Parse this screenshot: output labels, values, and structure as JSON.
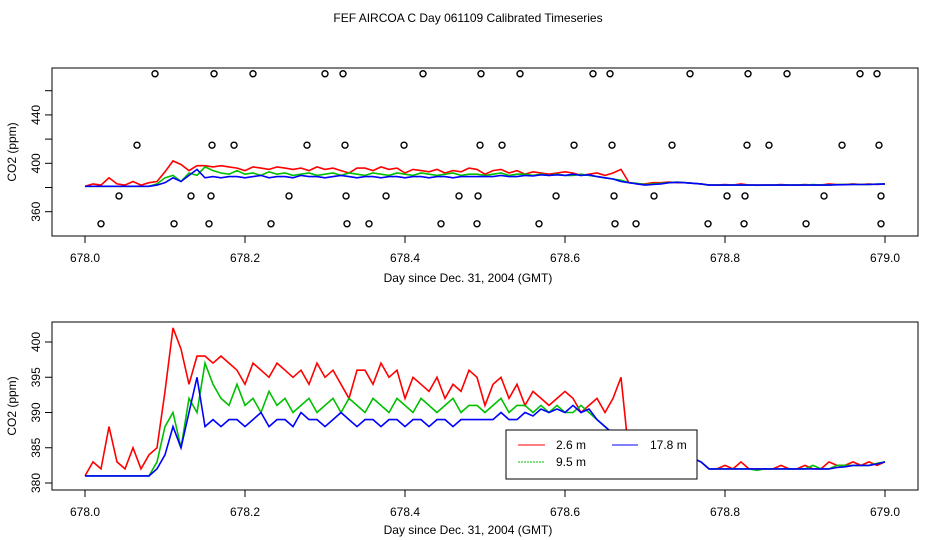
{
  "title": "FEF AIRCOA C  Day 061109  Calibrated Timeseries",
  "colors": {
    "2.6 m": "#ff0000",
    "9.5 m": "#00c000",
    "17.8 m": "#0000ff",
    "outliers": "#000000"
  },
  "chart_data": [
    {
      "type": "line",
      "title": "FEF AIRCOA C  Day 061109  Calibrated Timeseries",
      "xlabel": "Day since Dec. 31, 2004 (GMT)",
      "ylabel": "CO2 (ppm)",
      "xlim": [
        678.0,
        679.0
      ],
      "ylim": [
        345,
        480
      ],
      "xticks": [
        "678.0",
        "678.2",
        "678.4",
        "678.6",
        "678.8",
        "679.0"
      ],
      "yticks": [
        360,
        380,
        400,
        420,
        440,
        460
      ],
      "ytick_labels": [
        "360",
        "400",
        "440"
      ],
      "outliers": {
        "name": "outliers",
        "marker": "open circle",
        "x": [
          678.0875,
          678.1613,
          678.21,
          678.3,
          678.3225,
          678.4225,
          678.495,
          678.5438,
          678.635,
          678.6563,
          678.7563,
          678.8288,
          678.8775,
          678.9688,
          678.99,
          678.065,
          678.1588,
          678.1863,
          678.2775,
          678.325,
          678.3988,
          678.4938,
          678.5213,
          678.6113,
          678.6588,
          678.7338,
          678.8275,
          678.855,
          678.9463,
          678.9925,
          678.0425,
          678.1325,
          678.1575,
          678.255,
          678.3263,
          678.3763,
          678.4675,
          678.4913,
          678.5888,
          678.6613,
          678.7113,
          678.8025,
          678.825,
          678.9238,
          678.995,
          678.02,
          678.1113,
          678.155,
          678.2325,
          678.3275,
          678.355,
          678.445,
          678.49,
          678.5675,
          678.6625,
          678.6888,
          678.7788,
          678.8238,
          678.9013,
          678.995
        ],
        "y": [
          474,
          474,
          474,
          474,
          474,
          474,
          474,
          474,
          474,
          474,
          474,
          474,
          474,
          474,
          474,
          415,
          415,
          415,
          415,
          415,
          415,
          415,
          415,
          415,
          415,
          415,
          415,
          415,
          415,
          415,
          373,
          373,
          373,
          373,
          373,
          373,
          373,
          373,
          373,
          373,
          373,
          373,
          373,
          373,
          373,
          350,
          350,
          350,
          350,
          350,
          350,
          350,
          350,
          350,
          350,
          350,
          350,
          350,
          350,
          350
        ]
      }
    },
    {
      "type": "line",
      "xlabel": "Day since Dec. 31, 2004 (GMT)",
      "ylabel": "CO2 (ppm)",
      "xlim": [
        678.0,
        679.0
      ],
      "ylim": [
        380,
        402
      ],
      "xticks": [
        "678.0",
        "678.2",
        "678.4",
        "678.6",
        "678.8",
        "679.0"
      ],
      "yticks": [
        "380",
        "385",
        "390",
        "395",
        "400"
      ],
      "legend": {
        "placement": "bottom-center-right"
      }
    }
  ],
  "x_start": 678.0,
  "x_step": 0.01,
  "series": [
    {
      "name": "2.6 m",
      "color": "#ff0000",
      "values": [
        381,
        383,
        382,
        388,
        383,
        382,
        385,
        382,
        384,
        385,
        393,
        402,
        399,
        394,
        398,
        398,
        397,
        398,
        397,
        396,
        394,
        397,
        396,
        395,
        397,
        396,
        395,
        396,
        394,
        397,
        395,
        396,
        394,
        392,
        396,
        396,
        394,
        397,
        395,
        396,
        392,
        395,
        394,
        393,
        395,
        392,
        394,
        393,
        396,
        395,
        391,
        394,
        395,
        392,
        394,
        391,
        393,
        392,
        391,
        392,
        393,
        392,
        390,
        391,
        392,
        390,
        392,
        395,
        384,
        383,
        383,
        384,
        384,
        384.5,
        384,
        384,
        383.5,
        383,
        382,
        382,
        382.5,
        382,
        383,
        382,
        382,
        382,
        382,
        382.5,
        382,
        382,
        382.5,
        382,
        382,
        383,
        382.5,
        382.5,
        383,
        382.5,
        383,
        382.5,
        383
      ]
    },
    {
      "name": "9.5 m",
      "color": "#00c000",
      "values": [
        381,
        381,
        381,
        381,
        381,
        381,
        381,
        381,
        381,
        383,
        388,
        390,
        385,
        392,
        390,
        397,
        394,
        392,
        391,
        394,
        391,
        392,
        390,
        393,
        391,
        392,
        390,
        391,
        392,
        390,
        391,
        392,
        390,
        392,
        391,
        390,
        392,
        391,
        390,
        392,
        391,
        390,
        392,
        391,
        390,
        391,
        392,
        390,
        391,
        391,
        390,
        391,
        392,
        390,
        391,
        391,
        390,
        391,
        390,
        391,
        390,
        390,
        391,
        390,
        389,
        388,
        387,
        386,
        384,
        383.5,
        382.5,
        383,
        383.5,
        384,
        384.5,
        384,
        383.5,
        383,
        382,
        382,
        382,
        382,
        382,
        382,
        381.8,
        382,
        382,
        382,
        382,
        382,
        382,
        382.5,
        382,
        382,
        382.5,
        382.5,
        382.5,
        382.5,
        382.5,
        382.8,
        383
      ]
    },
    {
      "name": "17.8 m",
      "color": "#0000ff",
      "values": [
        381,
        381,
        381,
        381,
        381,
        381,
        381,
        381,
        381,
        382,
        384,
        388,
        385,
        390,
        395,
        388,
        389,
        388,
        389,
        389,
        388,
        389,
        390,
        388,
        389,
        389,
        388,
        390,
        389,
        389,
        388,
        389,
        390,
        389,
        388,
        389,
        389,
        388,
        389,
        389,
        388,
        389,
        389,
        388,
        389,
        389,
        388,
        389,
        389,
        389,
        389,
        389,
        390,
        389,
        389,
        390,
        389.5,
        390.5,
        390,
        390.5,
        390,
        391,
        390,
        390.5,
        389,
        388,
        387,
        385,
        384,
        383,
        382,
        382.5,
        383,
        384,
        384.3,
        384,
        383.5,
        383,
        382,
        382,
        382,
        382,
        382,
        382,
        382,
        382,
        382,
        382,
        382,
        382,
        382,
        382,
        382,
        382,
        382.2,
        382.3,
        382.5,
        382.5,
        382.5,
        382.7,
        383
      ]
    }
  ]
}
